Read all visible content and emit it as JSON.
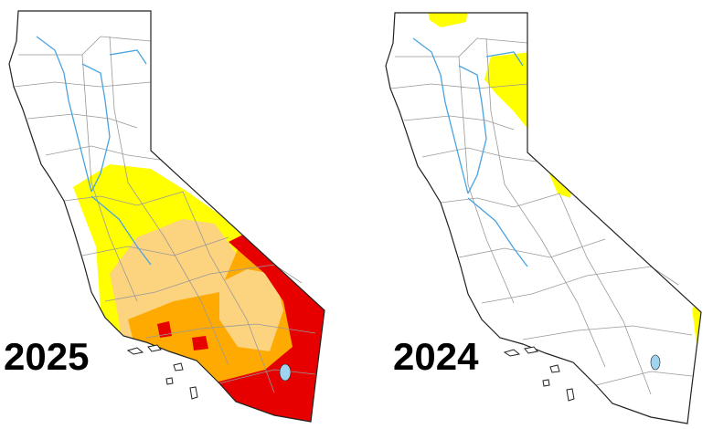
{
  "maps": [
    {
      "year": "2025"
    },
    {
      "year": "2024"
    }
  ]
}
